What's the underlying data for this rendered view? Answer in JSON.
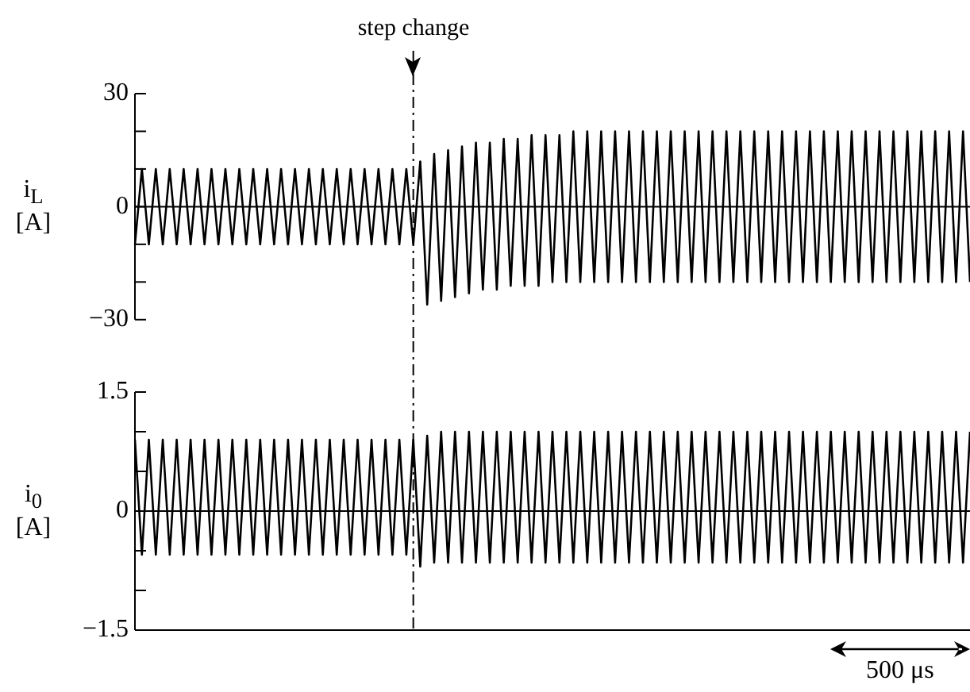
{
  "chart_data": [
    {
      "type": "line",
      "ylabel": "i$_{L}$ [A]",
      "ylim": [
        -30,
        30
      ],
      "tick_labels": "y",
      "grid": false,
      "legend": false,
      "marker": "none",
      "line_style": "solid",
      "yticks": [
        {
          "value": -30,
          "label": "−30"
        },
        {
          "value": -20,
          "label": null
        },
        {
          "value": -10,
          "label": null
        },
        {
          "value": 0,
          "label": "0"
        },
        {
          "value": 10,
          "label": null
        },
        {
          "value": 20,
          "label": null
        },
        {
          "value": 30,
          "label": "30"
        }
      ],
      "ref_lines": [
        {
          "axis": "y",
          "value": 0,
          "color": "#000000",
          "line_style": "solid"
        }
      ],
      "annotations": [
        "step change"
      ],
      "categories": [
        null,
        null,
        null,
        null,
        null,
        null,
        null,
        null,
        null,
        null,
        null,
        null,
        null,
        null,
        null,
        null,
        null,
        null,
        null,
        null,
        null,
        null,
        null,
        null,
        null,
        null,
        null,
        null,
        null,
        null,
        null,
        null,
        null,
        null,
        null,
        null,
        null,
        null,
        null,
        null,
        null,
        null,
        null,
        null,
        null,
        null,
        null,
        null,
        null,
        null,
        null,
        null,
        null,
        null,
        null,
        null,
        null,
        null,
        null,
        null,
        null,
        null,
        null,
        null,
        null,
        null,
        null,
        null,
        null,
        null,
        null,
        null,
        null,
        null,
        null,
        null,
        null,
        null,
        null,
        null,
        null,
        null,
        null,
        null,
        null,
        null,
        null,
        null,
        null,
        null,
        null,
        null,
        null,
        null,
        null,
        null,
        null,
        null,
        null,
        null,
        null,
        null,
        null,
        null,
        null,
        null,
        null,
        null,
        null,
        null,
        null,
        null,
        null,
        null,
        null,
        null,
        null,
        null,
        null,
        null,
        null
      ],
      "series": [
        {
          "color": "#000000",
          "values": [
            -10,
            10,
            -10,
            10,
            -10,
            10,
            -10,
            10,
            -10,
            10,
            -10,
            10,
            -10,
            10,
            -10,
            10,
            -10,
            10,
            -10,
            10,
            -10,
            10,
            -10,
            10,
            -10,
            10,
            -10,
            10,
            -10,
            10,
            -10,
            10,
            -10,
            10,
            -10,
            10,
            -10,
            10,
            -10,
            10,
            -10,
            12,
            -26,
            14,
            -25,
            15,
            -24,
            16,
            -23,
            17,
            -22,
            17,
            -22,
            18,
            -21,
            18,
            -21,
            19,
            -21,
            19,
            -20,
            19,
            -20,
            20,
            -20,
            20,
            -20,
            20,
            -20,
            20,
            -20,
            20,
            -20,
            20,
            -20,
            20,
            -20,
            20,
            -20,
            20,
            -20,
            20,
            -20,
            20,
            -20,
            20,
            -20,
            20,
            -20,
            20,
            -20,
            20,
            -20,
            20,
            -20,
            20,
            -20,
            20,
            -20,
            20,
            -20,
            20,
            -20,
            20,
            -20,
            20,
            -20,
            20,
            -20,
            20,
            -20,
            20,
            -20,
            20,
            -20,
            20,
            -20,
            20,
            -20,
            20,
            -20
          ]
        }
      ]
    },
    {
      "type": "line",
      "ylabel": "i$_{0}$ [A]",
      "ylim": [
        -1.5,
        1.5
      ],
      "tick_labels": "y",
      "grid": false,
      "legend": false,
      "marker": "none",
      "line_style": "solid",
      "yticks": [
        {
          "value": -1.5,
          "label": "−1.5"
        },
        {
          "value": -1,
          "label": null
        },
        {
          "value": -0.5,
          "label": null
        },
        {
          "value": 0,
          "label": "0"
        },
        {
          "value": 0.5,
          "label": null
        },
        {
          "value": 1,
          "label": null
        },
        {
          "value": 1.5,
          "label": "1.5"
        }
      ],
      "ref_lines": [
        {
          "axis": "y",
          "value": 0,
          "color": "#000000",
          "line_style": "solid"
        }
      ],
      "annotations": [
        "500 μs"
      ],
      "categories": [
        null,
        null,
        null,
        null,
        null,
        null,
        null,
        null,
        null,
        null,
        null,
        null,
        null,
        null,
        null,
        null,
        null,
        null,
        null,
        null,
        null,
        null,
        null,
        null,
        null,
        null,
        null,
        null,
        null,
        null,
        null,
        null,
        null,
        null,
        null,
        null,
        null,
        null,
        null,
        null,
        null,
        null,
        null,
        null,
        null,
        null,
        null,
        null,
        null,
        null,
        null,
        null,
        null,
        null,
        null,
        null,
        null,
        null,
        null,
        null,
        null,
        null,
        null,
        null,
        null,
        null,
        null,
        null,
        null,
        null,
        null,
        null,
        null,
        null,
        null,
        null,
        null,
        null,
        null,
        null,
        null,
        null,
        null,
        null,
        null,
        null,
        null,
        null,
        null,
        null,
        null,
        null,
        null,
        null,
        null,
        null,
        null,
        null,
        null,
        null,
        null,
        null,
        null,
        null,
        null,
        null,
        null,
        null,
        null,
        null,
        null,
        null,
        null,
        null,
        null,
        null,
        null,
        null,
        null,
        null,
        null
      ],
      "series": [
        {
          "color": "#000000",
          "values": [
            0.9,
            -0.55,
            0.9,
            -0.55,
            0.9,
            -0.55,
            0.9,
            -0.55,
            0.9,
            -0.55,
            0.9,
            -0.55,
            0.9,
            -0.55,
            0.9,
            -0.55,
            0.9,
            -0.55,
            0.9,
            -0.55,
            0.9,
            -0.55,
            0.9,
            -0.55,
            0.9,
            -0.55,
            0.9,
            -0.55,
            0.9,
            -0.55,
            0.9,
            -0.55,
            0.9,
            -0.55,
            0.9,
            -0.55,
            0.9,
            -0.55,
            0.9,
            -0.55,
            0.9,
            -0.7,
            0.95,
            -0.65,
            1,
            -0.65,
            1,
            -0.65,
            1,
            -0.65,
            1,
            -0.65,
            1,
            -0.65,
            1,
            -0.65,
            1,
            -0.65,
            1,
            -0.65,
            1,
            -0.65,
            1,
            -0.65,
            1,
            -0.65,
            1,
            -0.65,
            1,
            -0.65,
            1,
            -0.65,
            1,
            -0.65,
            1,
            -0.65,
            1,
            -0.65,
            1,
            -0.65,
            1,
            -0.65,
            1,
            -0.65,
            1,
            -0.65,
            1,
            -0.65,
            1,
            -0.65,
            1,
            -0.65,
            1,
            -0.65,
            1,
            -0.65,
            1,
            -0.65,
            1,
            -0.65,
            1,
            -0.65,
            1,
            -0.65,
            1,
            -0.65,
            1,
            -0.65,
            1,
            -0.65,
            1,
            -0.65,
            1,
            -0.65,
            1,
            -0.65,
            1,
            -0.65,
            1,
            -0.65,
            1
          ]
        }
      ]
    }
  ]
}
